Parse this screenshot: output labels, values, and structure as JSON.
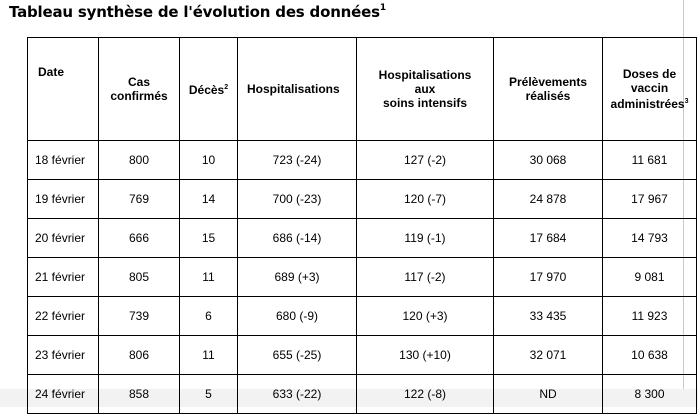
{
  "title": "Tableau synthèse de l'évolution des données",
  "title_note": "1",
  "headers": {
    "date": "Date",
    "cas_line1": "Cas",
    "cas_line2": "confirmés",
    "deces": "Décès",
    "deces_note": "2",
    "hosp": "Hospitalisations",
    "hsi_line1": "Hospitalisations",
    "hsi_line2": "aux",
    "hsi_line3": "soins intensifs",
    "prel_line1": "Prélèvements",
    "prel_line2": "réalisés",
    "doses_line1": "Doses de",
    "doses_line2": "vaccin",
    "doses_line3": "administrées",
    "doses_note": "3"
  },
  "rows": [
    [
      "18 février",
      "800",
      "10",
      "723 (-24)",
      "127 (-2)",
      "30 068",
      "11 681"
    ],
    [
      "19 février",
      "769",
      "14",
      "700 (-23)",
      "120 (-7)",
      "24 878",
      "17 967"
    ],
    [
      "20 février",
      "666",
      "15",
      "686 (-14)",
      "119 (-1)",
      "17 684",
      "14 793"
    ],
    [
      "21 février",
      "805",
      "11",
      "689 (+3)",
      "117 (-2)",
      "17 970",
      "9 081"
    ],
    [
      "22 février",
      "739",
      "6",
      "680 (-9)",
      "120 (+3)",
      "33 435",
      "11 923"
    ],
    [
      "23 février",
      "806",
      "11",
      "655 (-25)",
      "130 (+10)",
      "32 071",
      "10 638"
    ],
    [
      "24 février",
      "858",
      "5",
      "633 (-22)",
      "122 (-8)",
      "ND",
      "8 300"
    ]
  ]
}
